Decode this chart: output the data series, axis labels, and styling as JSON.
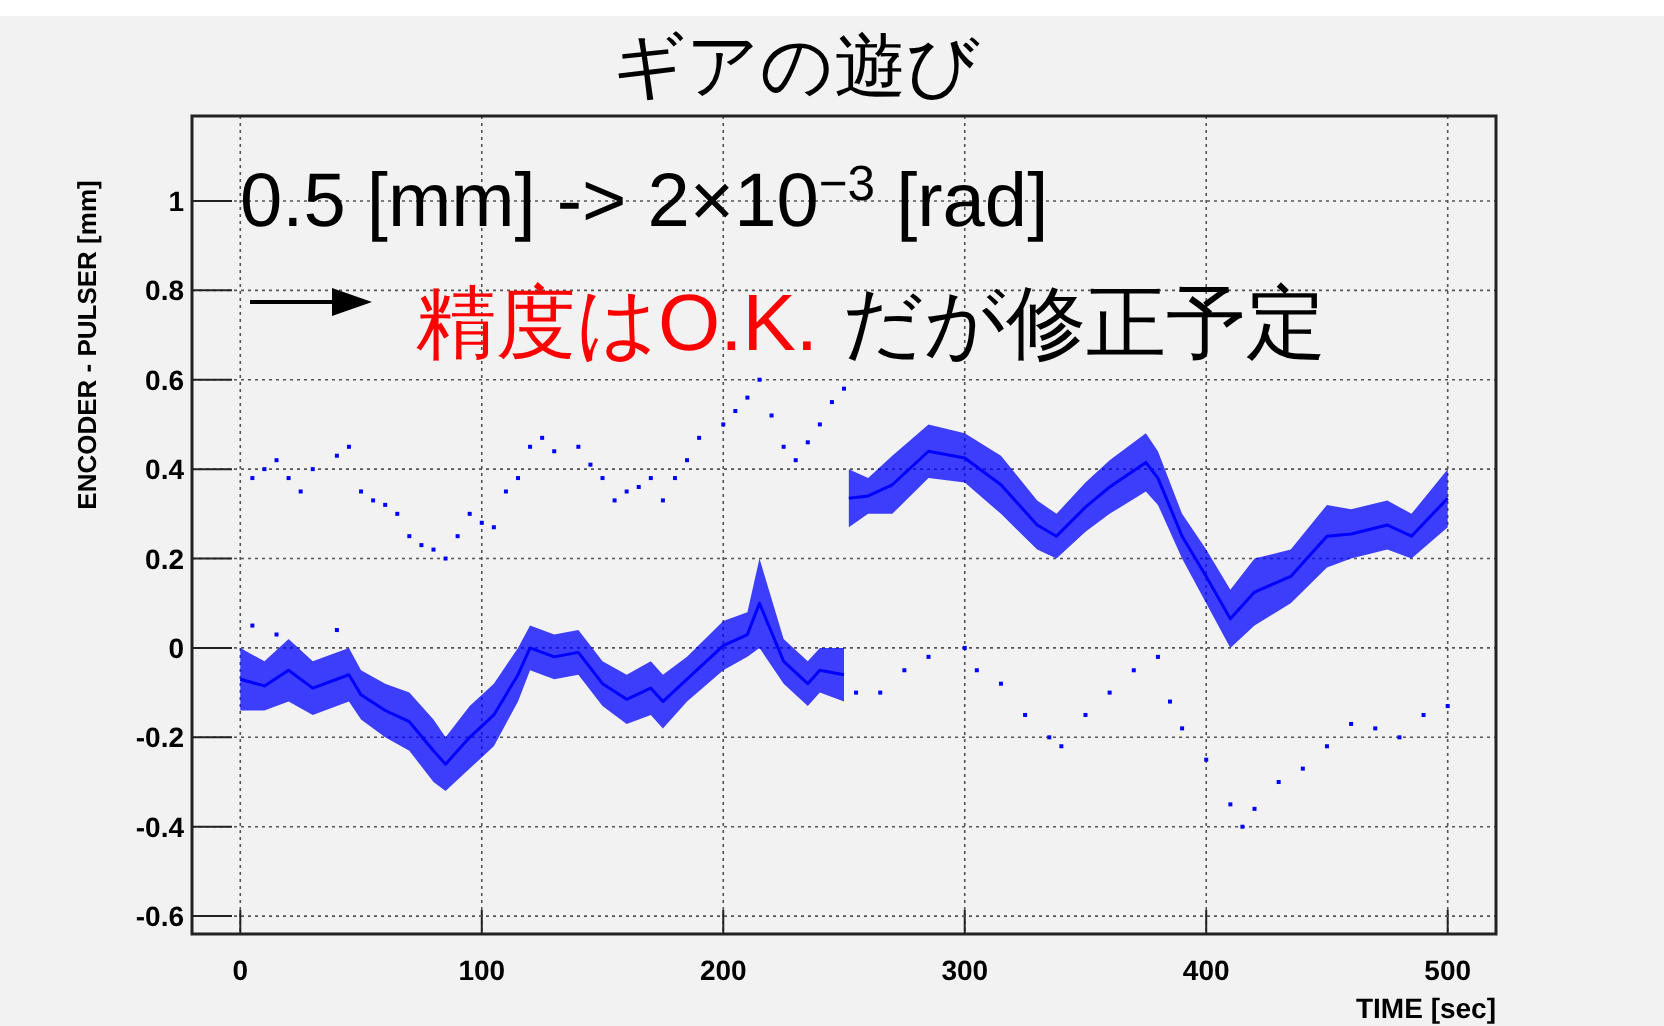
{
  "chart_data": {
    "type": "scatter",
    "title": "ギアの遊び",
    "xlabel": "TIME [sec]",
    "ylabel": "ENCODER - PULSER [mm]",
    "annotations": [
      "0.5 [mm] -> 2×10$^{−3}$ [rad]",
      "精度はO.K.",
      "だが修正予定"
    ],
    "xlim": [
      -20,
      520
    ],
    "xticks": [
      0,
      100,
      200,
      300,
      400,
      500
    ],
    "ylim": [
      -0.64,
      1.19
    ],
    "yticks": [
      -0.6,
      -0.4,
      -0.2,
      0,
      0.2,
      0.4,
      0.6,
      0.8,
      1
    ],
    "grid": true,
    "series": [
      {
        "type": "line",
        "color": "#0000ff",
        "x": [
          0,
          10,
          20,
          30,
          45,
          50,
          60,
          70,
          80,
          85,
          95,
          105,
          115,
          120,
          130,
          140,
          150,
          160,
          170,
          175,
          185,
          200,
          210,
          215,
          225,
          235,
          240,
          250,
          null,
          252,
          260,
          270,
          285,
          300,
          315,
          330,
          338,
          350,
          360,
          375,
          380,
          390,
          400,
          410,
          420,
          435,
          450,
          460,
          475,
          485,
          500
        ],
        "values": [
          -0.07,
          -0.085,
          -0.05,
          -0.09,
          -0.06,
          -0.105,
          -0.14,
          -0.165,
          -0.23,
          -0.26,
          -0.2,
          -0.15,
          -0.06,
          0.0,
          -0.02,
          -0.01,
          -0.08,
          -0.115,
          -0.09,
          -0.12,
          -0.07,
          0.005,
          0.03,
          0.1,
          -0.03,
          -0.08,
          -0.05,
          -0.06,
          null,
          0.335,
          0.34,
          0.365,
          0.44,
          0.425,
          0.365,
          0.275,
          0.25,
          0.315,
          0.36,
          0.415,
          0.38,
          0.25,
          0.16,
          0.065,
          0.125,
          0.16,
          0.25,
          0.255,
          0.275,
          0.25,
          0.335
        ],
        "lower": [
          -0.14,
          -0.14,
          -0.12,
          -0.15,
          -0.12,
          -0.16,
          -0.2,
          -0.23,
          -0.3,
          -0.32,
          -0.27,
          -0.22,
          -0.12,
          -0.05,
          -0.07,
          -0.06,
          -0.13,
          -0.17,
          -0.15,
          -0.18,
          -0.12,
          -0.05,
          -0.02,
          0.0,
          -0.08,
          -0.13,
          -0.1,
          -0.12,
          null,
          0.27,
          0.3,
          0.3,
          0.38,
          0.37,
          0.3,
          0.22,
          0.2,
          0.26,
          0.3,
          0.35,
          0.32,
          0.2,
          0.1,
          0.0,
          0.05,
          0.1,
          0.18,
          0.2,
          0.22,
          0.2,
          0.27
        ],
        "upper": [
          0.0,
          -0.03,
          0.02,
          -0.03,
          0.0,
          -0.05,
          -0.08,
          -0.1,
          -0.16,
          -0.2,
          -0.13,
          -0.08,
          0.0,
          0.05,
          0.03,
          0.04,
          -0.03,
          -0.06,
          -0.03,
          -0.06,
          -0.02,
          0.06,
          0.08,
          0.2,
          0.02,
          -0.03,
          0.0,
          0.0,
          null,
          0.4,
          0.38,
          0.43,
          0.5,
          0.48,
          0.43,
          0.33,
          0.3,
          0.37,
          0.42,
          0.48,
          0.44,
          0.3,
          0.22,
          0.13,
          0.2,
          0.22,
          0.32,
          0.31,
          0.33,
          0.3,
          0.4
        ]
      },
      {
        "color": "#0000ff",
        "marker": "square",
        "x": [
          5,
          10,
          15,
          20,
          25,
          30,
          40,
          45,
          50,
          55,
          60,
          65,
          70,
          75,
          80,
          85,
          90,
          95,
          100,
          105,
          110,
          115,
          120,
          125,
          130,
          140,
          145,
          150,
          155,
          160,
          165,
          170,
          175,
          180,
          185,
          190,
          200,
          205,
          210,
          215,
          220,
          225,
          230,
          235,
          240,
          245,
          250,
          5,
          15,
          40,
          255,
          265,
          275,
          285,
          300,
          305,
          315,
          325,
          335,
          340,
          350,
          360,
          370,
          380,
          385,
          390,
          400,
          410,
          415,
          420,
          430,
          440,
          450,
          460,
          470,
          480,
          490,
          500
        ],
        "values": [
          0.38,
          0.4,
          0.42,
          0.38,
          0.35,
          0.4,
          0.43,
          0.45,
          0.35,
          0.33,
          0.32,
          0.3,
          0.25,
          0.23,
          0.22,
          0.2,
          0.25,
          0.3,
          0.28,
          0.27,
          0.35,
          0.38,
          0.45,
          0.47,
          0.44,
          0.45,
          0.41,
          0.38,
          0.33,
          0.35,
          0.36,
          0.38,
          0.33,
          0.38,
          0.42,
          0.47,
          0.5,
          0.53,
          0.56,
          0.6,
          0.52,
          0.45,
          0.42,
          0.46,
          0.5,
          0.55,
          0.58,
          0.05,
          0.03,
          0.04,
          -0.1,
          -0.1,
          -0.05,
          -0.02,
          0.0,
          -0.05,
          -0.08,
          -0.15,
          -0.2,
          -0.22,
          -0.15,
          -0.1,
          -0.05,
          -0.02,
          -0.12,
          -0.18,
          -0.25,
          -0.35,
          -0.4,
          -0.36,
          -0.3,
          -0.27,
          -0.22,
          -0.17,
          -0.18,
          -0.2,
          -0.15,
          -0.13
        ]
      }
    ]
  }
}
